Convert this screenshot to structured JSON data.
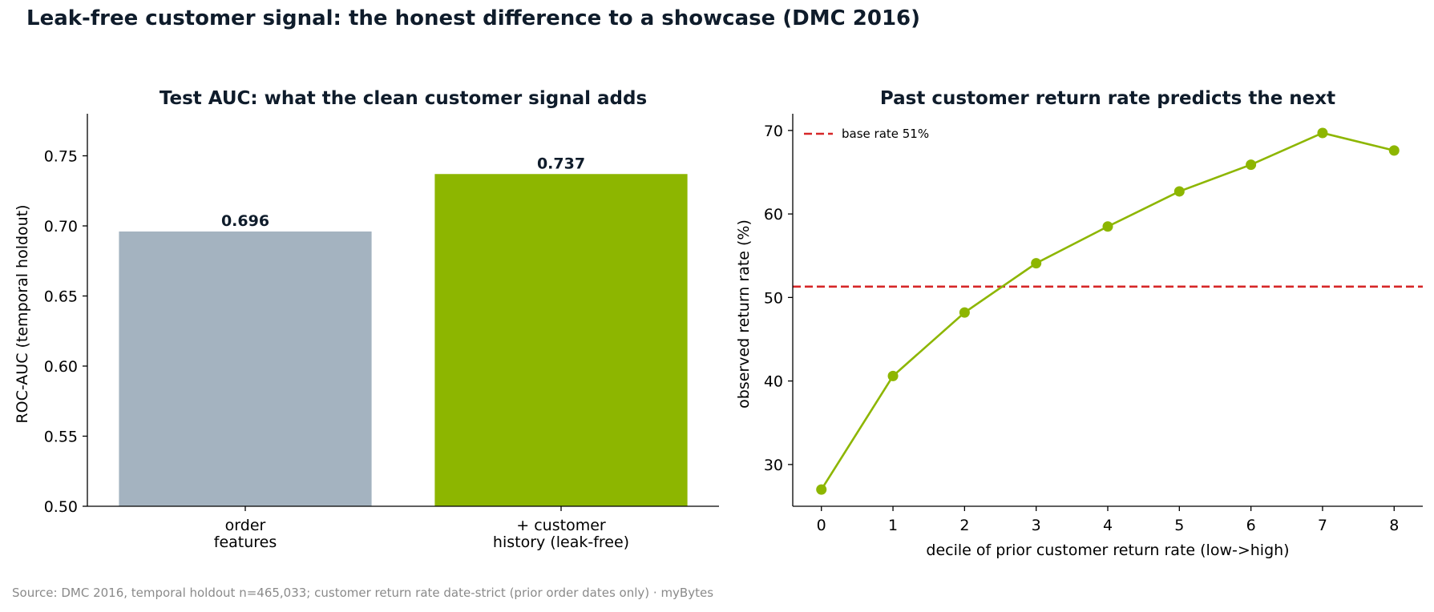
{
  "suptitle": "Leak-free customer signal: the honest difference to a showcase (DMC 2016)",
  "source": "Source: DMC 2016, temporal holdout n=465,033; customer return rate date-strict (prior order dates only) · myBytes",
  "chart_data": [
    {
      "type": "bar",
      "title": "Test AUC: what the clean customer signal adds",
      "ylabel": "ROC-AUC (temporal holdout)",
      "xlabel": "",
      "categories": [
        [
          "order",
          "features"
        ],
        [
          "+ customer",
          "history (leak-free)"
        ]
      ],
      "values": [
        0.696,
        0.737
      ],
      "value_labels": [
        "0.696",
        "0.737"
      ],
      "colors": [
        "#a4b3c0",
        "#8db600"
      ],
      "ylim": [
        0.5,
        0.78
      ],
      "yticks": [
        0.5,
        0.55,
        0.6,
        0.65,
        0.7,
        0.75
      ],
      "ytick_labels": [
        "0.50",
        "0.55",
        "0.60",
        "0.65",
        "0.70",
        "0.75"
      ],
      "grid": false
    },
    {
      "type": "line",
      "title": "Past customer return rate predicts the next",
      "xlabel": "decile of prior customer return rate (low->high)",
      "ylabel": "observed return rate (%)",
      "x": [
        0,
        1,
        2,
        3,
        4,
        5,
        6,
        7,
        8
      ],
      "y": [
        27.0,
        40.6,
        48.2,
        54.1,
        58.5,
        62.7,
        65.9,
        69.7,
        67.6
      ],
      "line_color": "#8db600",
      "xlim": [
        -0.4,
        8.4
      ],
      "ylim": [
        25,
        72
      ],
      "xticks": [
        0,
        1,
        2,
        3,
        4,
        5,
        6,
        7,
        8
      ],
      "yticks": [
        30,
        40,
        50,
        60,
        70
      ],
      "hline": {
        "y": 51.3,
        "label": "base rate 51%",
        "color": "#d62728"
      },
      "legend_placement": "top-left",
      "grid": false
    }
  ]
}
